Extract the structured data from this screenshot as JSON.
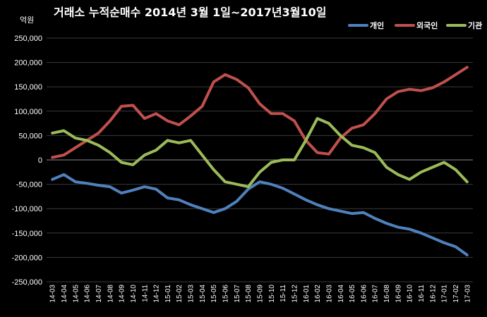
{
  "chart_data": {
    "type": "line",
    "title": "거래소 누적순매수 2014년 3월 1일~2017년3월10일",
    "unit_label": "억원",
    "ylim": [
      -250000,
      250000
    ],
    "yticks": [
      -250000,
      -200000,
      -150000,
      -100000,
      -50000,
      0,
      50000,
      100000,
      150000,
      200000,
      250000
    ],
    "ytick_labels": [
      "-250,000",
      "-200,000",
      "-150,000",
      "-100,000",
      "-50,000",
      "0",
      "50,000",
      "100,000",
      "150,000",
      "200,000",
      "250,000"
    ],
    "grid": true,
    "legend_position": "top-right",
    "categories": [
      "14-03",
      "14-04",
      "14-05",
      "14-06",
      "14-07",
      "14-08",
      "14-09",
      "14-10",
      "14-11",
      "14-12",
      "15-01",
      "15-02",
      "15-03",
      "15-04",
      "15-05",
      "15-06",
      "15-07",
      "15-08",
      "15-09",
      "15-10",
      "15-11",
      "15-12",
      "16-01",
      "16-02",
      "16-03",
      "16-04",
      "16-05",
      "16-06",
      "16-07",
      "16-08",
      "16-09",
      "16-10",
      "16-11",
      "16-12",
      "17-01",
      "17-02",
      "17-03"
    ],
    "series": [
      {
        "name": "개인",
        "color": "#4f81bd",
        "values": [
          -40000,
          -30000,
          -45000,
          -48000,
          -52000,
          -55000,
          -68000,
          -62000,
          -55000,
          -60000,
          -78000,
          -82000,
          -92000,
          -100000,
          -108000,
          -100000,
          -85000,
          -60000,
          -45000,
          -50000,
          -58000,
          -70000,
          -82000,
          -92000,
          -100000,
          -105000,
          -110000,
          -108000,
          -120000,
          -130000,
          -138000,
          -142000,
          -150000,
          -160000,
          -170000,
          -178000,
          -195000
        ]
      },
      {
        "name": "외국인",
        "color": "#c0504d",
        "values": [
          5000,
          10000,
          25000,
          40000,
          55000,
          80000,
          110000,
          112000,
          85000,
          95000,
          80000,
          72000,
          90000,
          110000,
          160000,
          175000,
          165000,
          148000,
          115000,
          95000,
          95000,
          80000,
          40000,
          15000,
          12000,
          45000,
          65000,
          72000,
          95000,
          125000,
          140000,
          145000,
          142000,
          148000,
          160000,
          175000,
          190000
        ]
      },
      {
        "name": "기관",
        "color": "#9bbb59",
        "values": [
          55000,
          60000,
          45000,
          40000,
          30000,
          15000,
          -5000,
          -10000,
          10000,
          20000,
          40000,
          35000,
          40000,
          10000,
          -20000,
          -45000,
          -50000,
          -55000,
          -25000,
          -5000,
          0,
          0,
          40000,
          85000,
          75000,
          50000,
          30000,
          25000,
          15000,
          -15000,
          -30000,
          -40000,
          -25000,
          -15000,
          -5000,
          -20000,
          -45000
        ]
      }
    ]
  }
}
